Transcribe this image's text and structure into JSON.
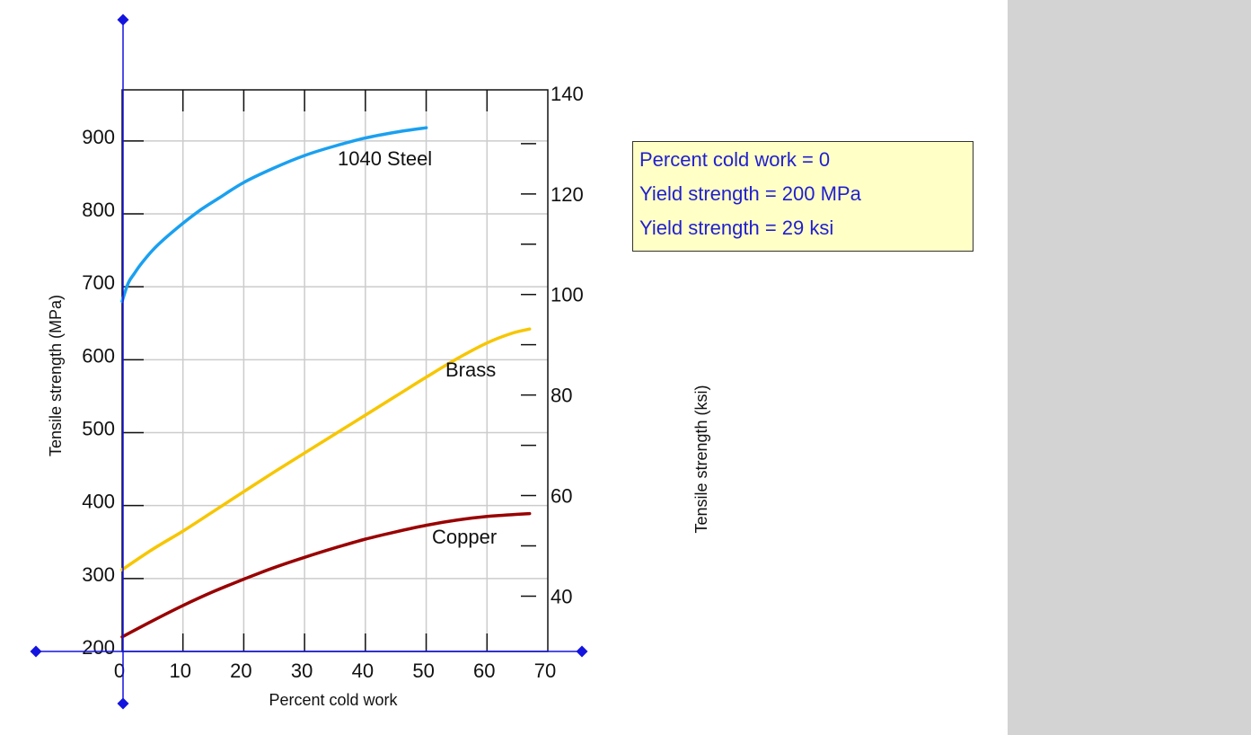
{
  "info_box": {
    "lines": [
      "Percent cold work = 0",
      "Yield strength = 200 MPa",
      "Yield strength = 29 ksi"
    ]
  },
  "colors": {
    "steel": "#1aa0f0",
    "brass": "#f7c600",
    "copper": "#990000",
    "handle": "#1414e0",
    "info_text": "#1f1fd0",
    "info_bg": "#ffffc6",
    "grid": "#cccccc",
    "side_panel": "#d3d3d3"
  },
  "chart_data": {
    "type": "line",
    "xlabel": "Percent cold work",
    "ylabel": "Tensile strength (MPa)",
    "ylabel_right": "Tensile strength (ksi)",
    "xlim": [
      0,
      70
    ],
    "ylim": [
      200,
      970
    ],
    "ylim_right_ksi": [
      29,
      140.7
    ],
    "x_ticks": [
      0,
      10,
      20,
      30,
      40,
      50,
      60,
      70
    ],
    "y_ticks": [
      200,
      300,
      400,
      500,
      600,
      700,
      800,
      900
    ],
    "y_ticks_right": [
      40,
      60,
      80,
      100,
      120,
      140
    ],
    "grid": true,
    "series": [
      {
        "name": "1040 Steel",
        "color": "#1aa0f0",
        "x": [
          0,
          1,
          2,
          3,
          5,
          7,
          10,
          13,
          16,
          20,
          25,
          30,
          35,
          40,
          45,
          50
        ],
        "y": [
          680,
          705,
          718,
          730,
          750,
          766,
          787,
          806,
          822,
          843,
          863,
          880,
          893,
          904,
          912,
          918
        ]
      },
      {
        "name": "Brass",
        "color": "#f7c600",
        "x": [
          0,
          5,
          10,
          15,
          20,
          25,
          30,
          35,
          40,
          45,
          50,
          55,
          60,
          64,
          67
        ],
        "y": [
          312,
          340,
          365,
          392,
          419,
          446,
          472,
          498,
          524,
          550,
          576,
          601,
          623,
          636,
          642
        ]
      },
      {
        "name": "Copper",
        "color": "#990000",
        "x": [
          0,
          5,
          10,
          15,
          20,
          25,
          30,
          35,
          40,
          45,
          50,
          55,
          60,
          65,
          67
        ],
        "y": [
          220,
          242,
          263,
          282,
          299,
          315,
          329,
          342,
          354,
          364,
          373,
          380,
          385,
          388,
          389
        ]
      }
    ],
    "annotations": [
      "1040 Steel",
      "Brass",
      "Copper"
    ]
  }
}
